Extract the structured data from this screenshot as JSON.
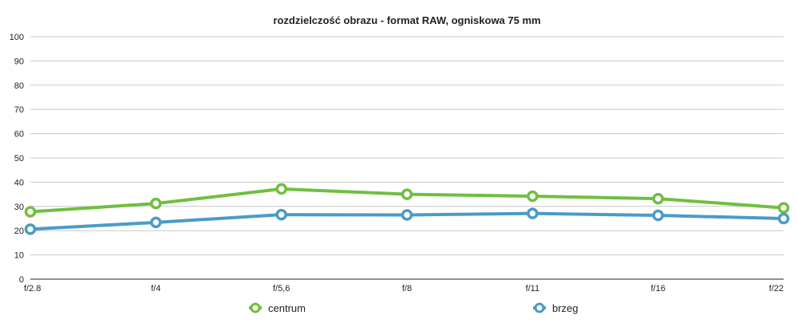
{
  "chart_data": {
    "type": "line",
    "title": "rozdzielczość obrazu - format RAW, ogniskowa 75 mm",
    "xlabel": "",
    "ylabel": "",
    "categories": [
      "f/2.8",
      "f/4",
      "f/5,6",
      "f/8",
      "f/11",
      "f/16",
      "f/22"
    ],
    "ylim": [
      0,
      100
    ],
    "yticks": [
      0,
      10,
      20,
      30,
      40,
      50,
      60,
      70,
      80,
      90,
      100
    ],
    "grid": true,
    "legend_position": "bottom",
    "series": [
      {
        "name": "centrum",
        "color": "#6fbf3f",
        "values": [
          27.8,
          31.2,
          37.2,
          35.0,
          34.2,
          33.2,
          29.4
        ]
      },
      {
        "name": "brzeg",
        "color": "#4a9bc8",
        "values": [
          20.6,
          23.4,
          26.6,
          26.5,
          27.1,
          26.3,
          25.0
        ]
      }
    ]
  }
}
